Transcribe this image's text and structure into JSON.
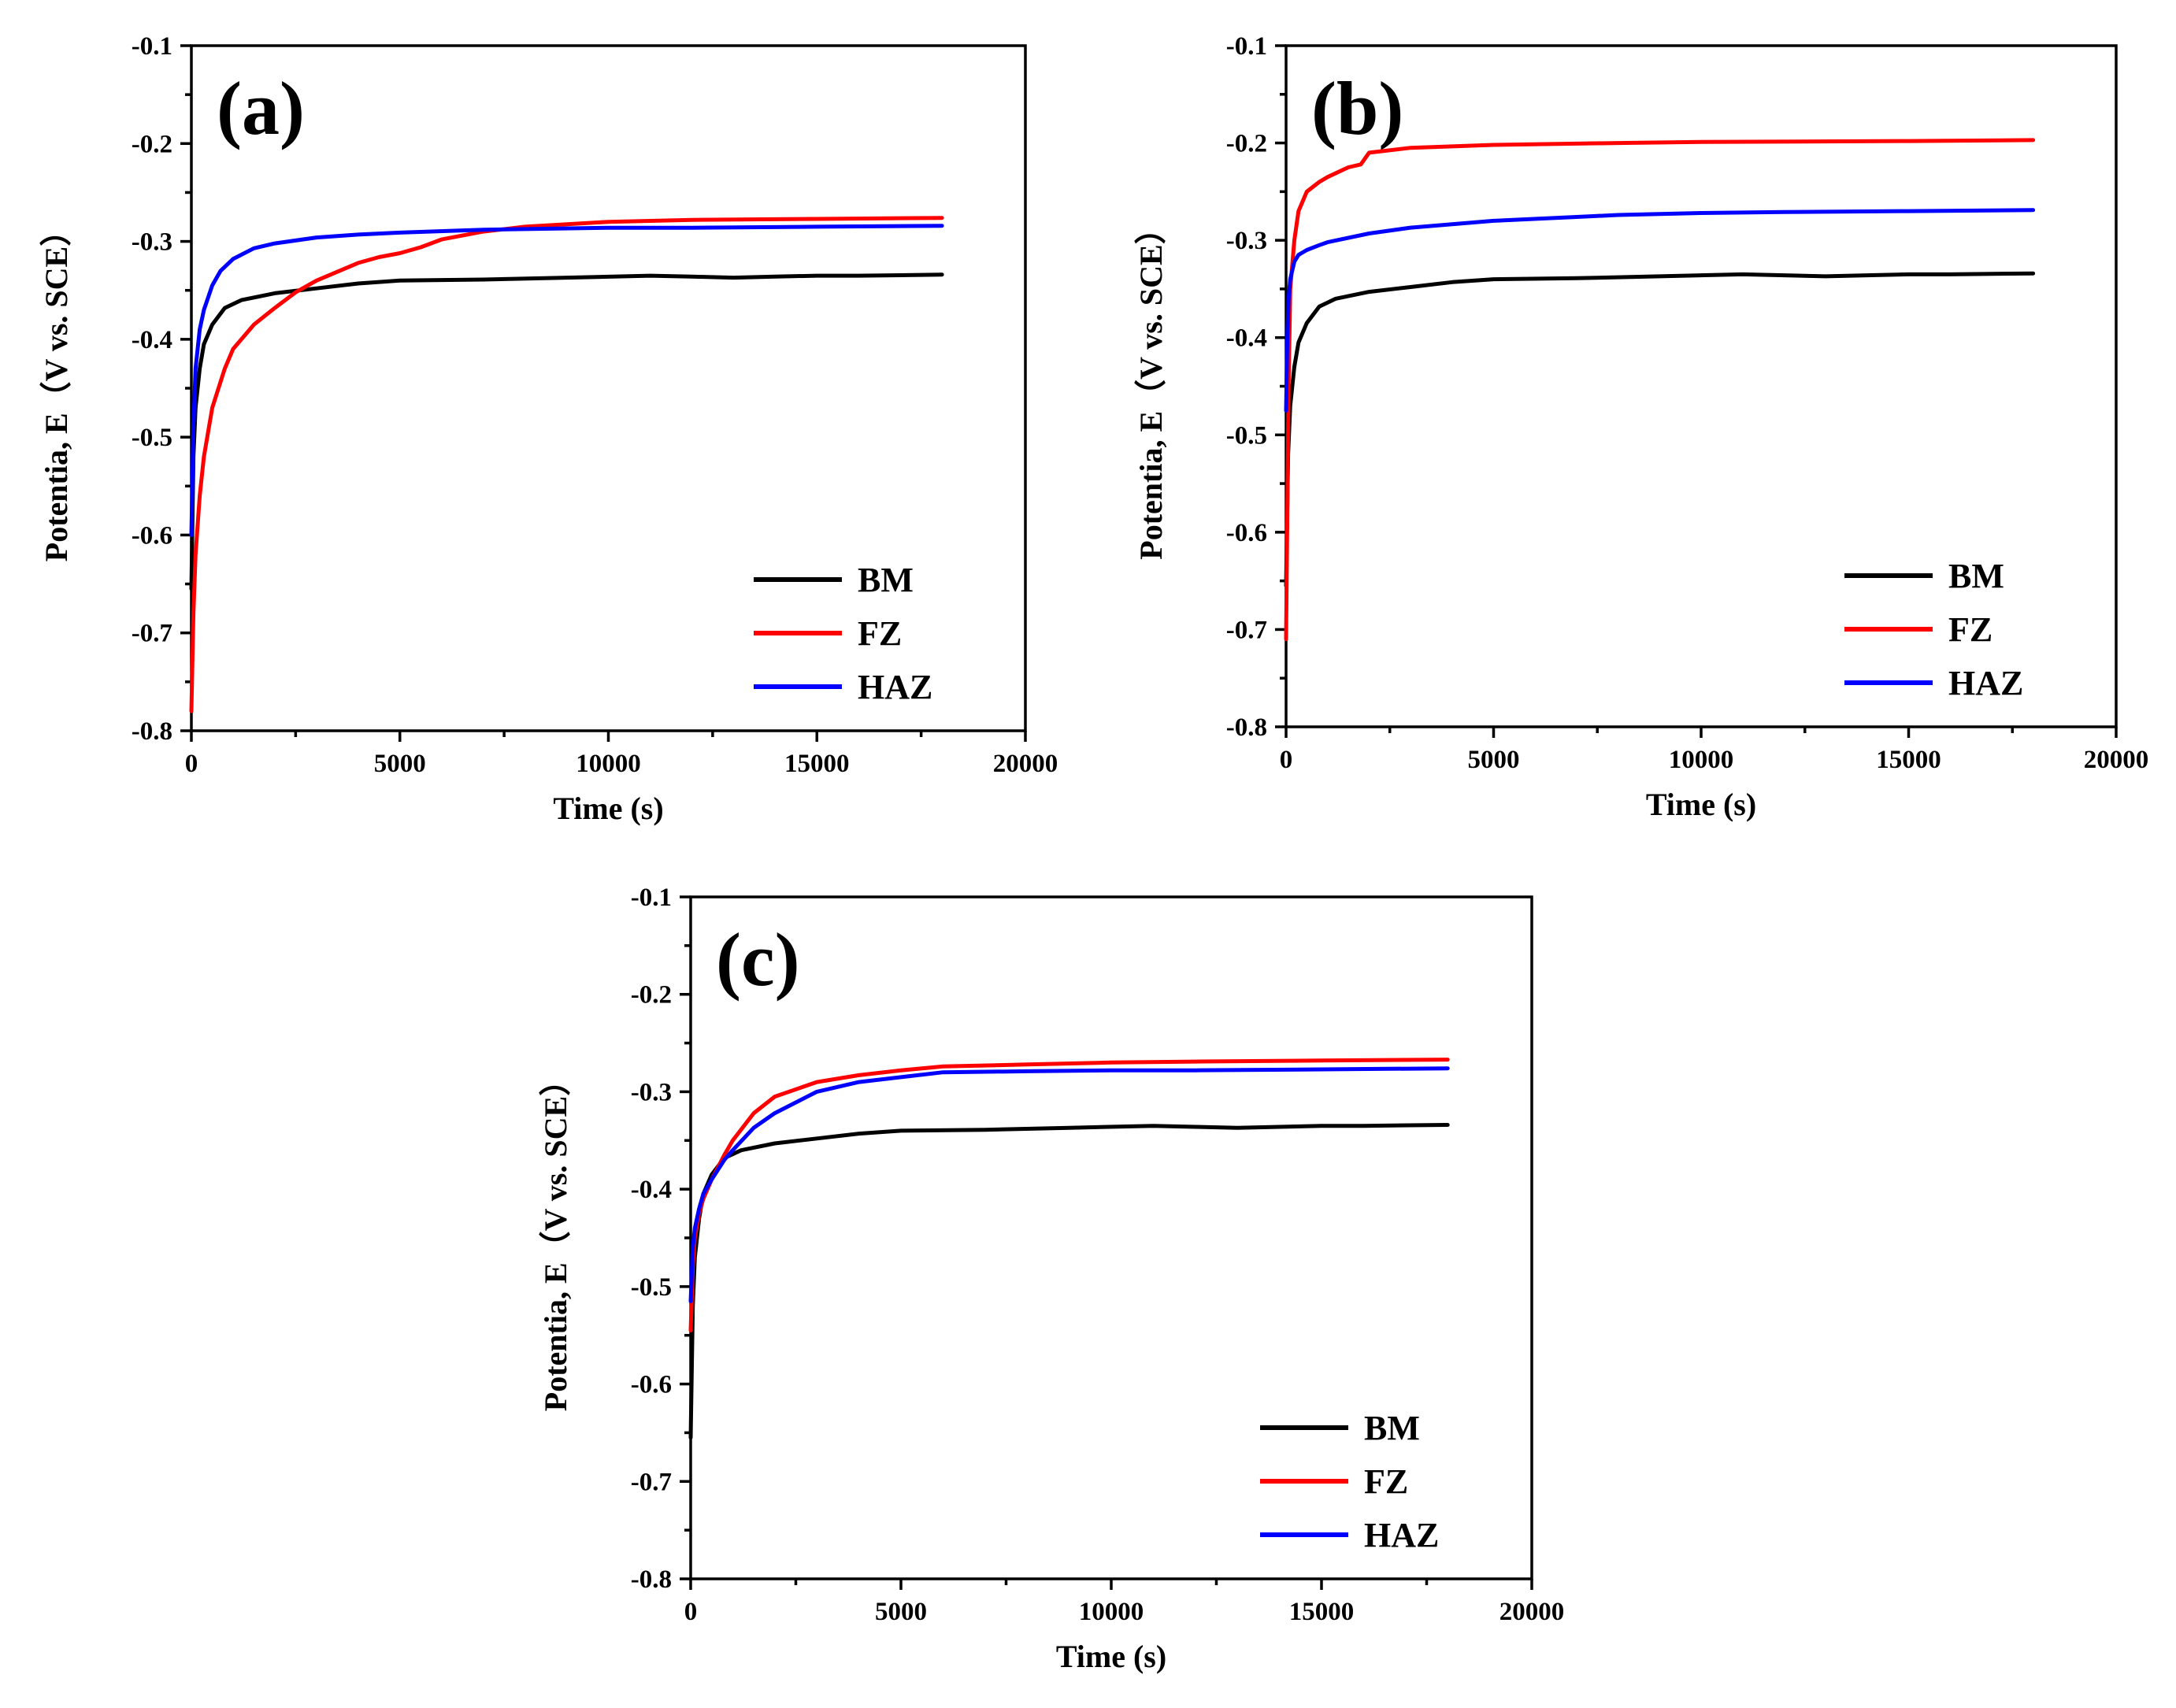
{
  "chart_data": [
    {
      "type": "line",
      "panel_label": "(a)",
      "xlabel": "Time (s)",
      "ylabel": "Potentia, E（V vs. SCE）",
      "xlim": [
        0,
        20000
      ],
      "ylim": [
        -0.8,
        -0.1
      ],
      "xticks": [
        0,
        5000,
        10000,
        15000,
        20000
      ],
      "yticks": [
        -0.8,
        -0.7,
        -0.6,
        -0.5,
        -0.4,
        -0.3,
        -0.2,
        -0.1
      ],
      "legend_position": "bottom-right",
      "series": [
        {
          "name": "BM",
          "color": "#000000",
          "x": [
            0,
            50,
            100,
            200,
            300,
            500,
            800,
            1200,
            2000,
            3000,
            4000,
            5000,
            7000,
            9000,
            11000,
            12000,
            13000,
            14000,
            15000,
            16000,
            18000
          ],
          "y": [
            -0.655,
            -0.52,
            -0.47,
            -0.43,
            -0.405,
            -0.385,
            -0.368,
            -0.36,
            -0.353,
            -0.348,
            -0.343,
            -0.34,
            -0.339,
            -0.337,
            -0.335,
            -0.336,
            -0.337,
            -0.336,
            -0.335,
            -0.335,
            -0.334
          ]
        },
        {
          "name": "FZ",
          "color": "#ff0000",
          "x": [
            0,
            50,
            100,
            200,
            300,
            500,
            800,
            1000,
            1500,
            2000,
            2500,
            3000,
            4000,
            4500,
            5000,
            5500,
            6000,
            7000,
            8000,
            10000,
            12000,
            15000,
            18000
          ],
          "y": [
            -0.78,
            -0.68,
            -0.62,
            -0.56,
            -0.52,
            -0.47,
            -0.43,
            -0.41,
            -0.385,
            -0.368,
            -0.352,
            -0.34,
            -0.322,
            -0.316,
            -0.312,
            -0.306,
            -0.298,
            -0.29,
            -0.285,
            -0.28,
            -0.278,
            -0.277,
            -0.276
          ]
        },
        {
          "name": "HAZ",
          "color": "#0000ff",
          "x": [
            0,
            50,
            100,
            200,
            300,
            500,
            700,
            1000,
            1500,
            2000,
            3000,
            4000,
            5000,
            7000,
            10000,
            12000,
            15000,
            18000
          ],
          "y": [
            -0.6,
            -0.49,
            -0.43,
            -0.39,
            -0.37,
            -0.345,
            -0.33,
            -0.318,
            -0.307,
            -0.302,
            -0.296,
            -0.293,
            -0.291,
            -0.288,
            -0.286,
            -0.286,
            -0.285,
            -0.284
          ]
        }
      ]
    },
    {
      "type": "line",
      "panel_label": "(b)",
      "xlabel": "Time (s)",
      "ylabel": "Potentia, E（V vs. SCE）",
      "xlim": [
        0,
        20000
      ],
      "ylim": [
        -0.8,
        -0.1
      ],
      "xticks": [
        0,
        5000,
        10000,
        15000,
        20000
      ],
      "yticks": [
        -0.8,
        -0.7,
        -0.6,
        -0.5,
        -0.4,
        -0.3,
        -0.2,
        -0.1
      ],
      "legend_position": "bottom-right",
      "series": [
        {
          "name": "BM",
          "color": "#000000",
          "x": [
            0,
            50,
            100,
            200,
            300,
            500,
            800,
            1200,
            2000,
            3000,
            4000,
            5000,
            7000,
            9000,
            11000,
            12000,
            13000,
            14000,
            15000,
            16000,
            18000
          ],
          "y": [
            -0.655,
            -0.52,
            -0.47,
            -0.43,
            -0.405,
            -0.385,
            -0.368,
            -0.36,
            -0.353,
            -0.348,
            -0.343,
            -0.34,
            -0.339,
            -0.337,
            -0.335,
            -0.336,
            -0.337,
            -0.336,
            -0.335,
            -0.335,
            -0.334
          ]
        },
        {
          "name": "FZ",
          "color": "#ff0000",
          "x": [
            0,
            30,
            60,
            100,
            200,
            300,
            500,
            800,
            1000,
            1500,
            1800,
            2000,
            3000,
            5000,
            8000,
            10000,
            15000,
            18000
          ],
          "y": [
            -0.71,
            -0.58,
            -0.45,
            -0.35,
            -0.3,
            -0.27,
            -0.25,
            -0.24,
            -0.235,
            -0.225,
            -0.222,
            -0.21,
            -0.205,
            -0.202,
            -0.2,
            -0.199,
            -0.198,
            -0.197
          ]
        },
        {
          "name": "HAZ",
          "color": "#0000ff",
          "x": [
            0,
            30,
            60,
            100,
            200,
            300,
            500,
            800,
            1000,
            2000,
            3000,
            5000,
            7000,
            8000,
            10000,
            12000,
            15000,
            18000
          ],
          "y": [
            -0.475,
            -0.4,
            -0.36,
            -0.34,
            -0.322,
            -0.315,
            -0.31,
            -0.305,
            -0.302,
            -0.293,
            -0.287,
            -0.28,
            -0.276,
            -0.274,
            -0.272,
            -0.271,
            -0.27,
            -0.269
          ]
        }
      ]
    },
    {
      "type": "line",
      "panel_label": "(c)",
      "xlabel": "Time (s)",
      "ylabel": "Potentia, E（V vs. SCE）",
      "xlim": [
        0,
        20000
      ],
      "ylim": [
        -0.8,
        -0.1
      ],
      "xticks": [
        0,
        5000,
        10000,
        15000,
        20000
      ],
      "yticks": [
        -0.8,
        -0.7,
        -0.6,
        -0.5,
        -0.4,
        -0.3,
        -0.2,
        -0.1
      ],
      "legend_position": "bottom-right",
      "series": [
        {
          "name": "BM",
          "color": "#000000",
          "x": [
            0,
            50,
            100,
            200,
            300,
            500,
            800,
            1200,
            2000,
            3000,
            4000,
            5000,
            7000,
            9000,
            11000,
            12000,
            13000,
            14000,
            15000,
            16000,
            18000
          ],
          "y": [
            -0.655,
            -0.52,
            -0.47,
            -0.43,
            -0.405,
            -0.385,
            -0.368,
            -0.36,
            -0.353,
            -0.348,
            -0.343,
            -0.34,
            -0.339,
            -0.337,
            -0.335,
            -0.336,
            -0.337,
            -0.336,
            -0.335,
            -0.335,
            -0.334
          ]
        },
        {
          "name": "FZ",
          "color": "#ff0000",
          "x": [
            0,
            50,
            100,
            200,
            300,
            500,
            800,
            1000,
            1500,
            2000,
            3000,
            4000,
            5000,
            6000,
            8000,
            10000,
            12000,
            15000,
            18000
          ],
          "y": [
            -0.545,
            -0.48,
            -0.45,
            -0.425,
            -0.41,
            -0.39,
            -0.365,
            -0.35,
            -0.322,
            -0.305,
            -0.29,
            -0.283,
            -0.278,
            -0.274,
            -0.272,
            -0.27,
            -0.269,
            -0.268,
            -0.267
          ]
        },
        {
          "name": "HAZ",
          "color": "#0000ff",
          "x": [
            0,
            50,
            100,
            200,
            300,
            500,
            800,
            1000,
            1500,
            2000,
            3000,
            4000,
            5000,
            6000,
            8000,
            10000,
            12000,
            15000,
            18000
          ],
          "y": [
            -0.515,
            -0.46,
            -0.44,
            -0.42,
            -0.405,
            -0.39,
            -0.37,
            -0.36,
            -0.337,
            -0.322,
            -0.3,
            -0.29,
            -0.285,
            -0.28,
            -0.279,
            -0.278,
            -0.278,
            -0.277,
            -0.276
          ]
        }
      ]
    }
  ]
}
